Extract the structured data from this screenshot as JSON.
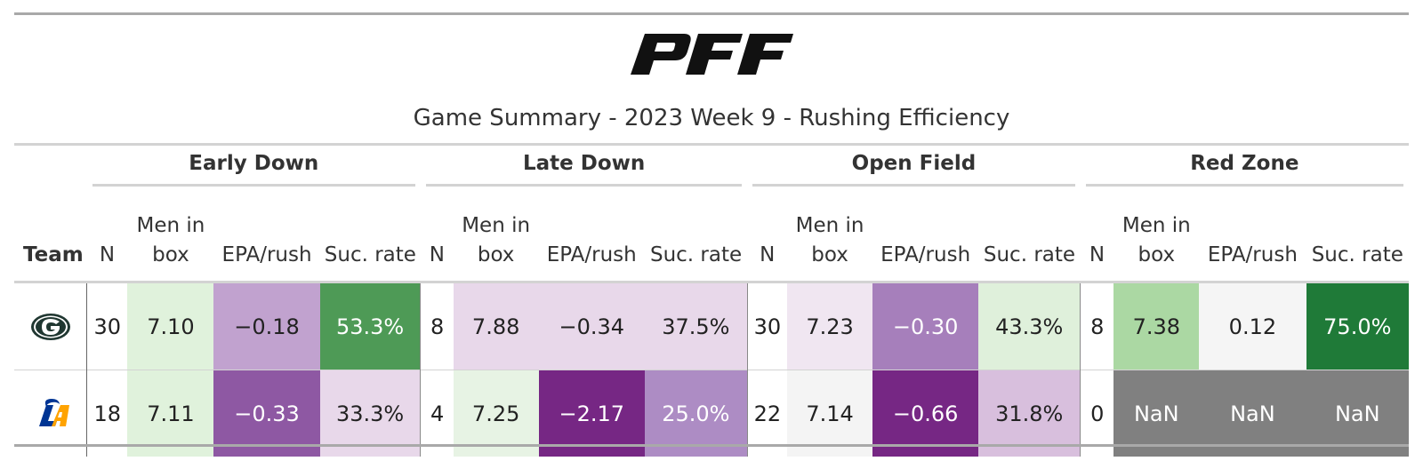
{
  "header": {
    "logo_text": "PFF",
    "title": "Game Summary - 2023 Week 9 - Rushing Efficiency"
  },
  "groups": [
    "Early Down",
    "Late Down",
    "Open Field",
    "Red Zone"
  ],
  "columns": {
    "team": "Team",
    "n": "N",
    "men_in_box_line1": "Men in",
    "men_in_box_line2": "box",
    "epa_rush": "EPA/rush",
    "suc_rate": "Suc. rate"
  },
  "rows": [
    {
      "team_icon": "packers-logo-icon",
      "cells": [
        {
          "text": "30",
          "bg": "#ffffff",
          "fg": "#222222"
        },
        {
          "text": "7.10",
          "bg": "#e0f2dc",
          "fg": "#222222"
        },
        {
          "text": "−0.18",
          "bg": "#c1a2cf",
          "fg": "#222222"
        },
        {
          "text": "53.3%",
          "bg": "#4e9a56",
          "fg": "#ffffff"
        },
        {
          "text": "8",
          "bg": "#ffffff",
          "fg": "#222222"
        },
        {
          "text": "7.88",
          "bg": "#e8d8ea",
          "fg": "#222222"
        },
        {
          "text": "−0.34",
          "bg": "#e8d8ea",
          "fg": "#222222"
        },
        {
          "text": "37.5%",
          "bg": "#e8d8ea",
          "fg": "#222222"
        },
        {
          "text": "30",
          "bg": "#ffffff",
          "fg": "#222222"
        },
        {
          "text": "7.23",
          "bg": "#f0e6f1",
          "fg": "#222222"
        },
        {
          "text": "−0.30",
          "bg": "#a67fbb",
          "fg": "#ffffff"
        },
        {
          "text": "43.3%",
          "bg": "#dff0db",
          "fg": "#222222"
        },
        {
          "text": "8",
          "bg": "#ffffff",
          "fg": "#222222"
        },
        {
          "text": "7.38",
          "bg": "#abd8a3",
          "fg": "#222222"
        },
        {
          "text": "0.12",
          "bg": "#f5f5f5",
          "fg": "#222222"
        },
        {
          "text": "75.0%",
          "bg": "#1f7a38",
          "fg": "#ffffff"
        }
      ]
    },
    {
      "team_icon": "rams-logo-icon",
      "cells": [
        {
          "text": "18",
          "bg": "#ffffff",
          "fg": "#222222"
        },
        {
          "text": "7.11",
          "bg": "#e0f2dc",
          "fg": "#222222"
        },
        {
          "text": "−0.33",
          "bg": "#8e58a3",
          "fg": "#ffffff"
        },
        {
          "text": "33.3%",
          "bg": "#e8d8ea",
          "fg": "#222222"
        },
        {
          "text": "4",
          "bg": "#ffffff",
          "fg": "#222222"
        },
        {
          "text": "7.25",
          "bg": "#e7f3e4",
          "fg": "#222222"
        },
        {
          "text": "−2.17",
          "bg": "#762784",
          "fg": "#ffffff"
        },
        {
          "text": "25.0%",
          "bg": "#ad8cc4",
          "fg": "#ffffff"
        },
        {
          "text": "22",
          "bg": "#ffffff",
          "fg": "#222222"
        },
        {
          "text": "7.14",
          "bg": "#f4f4f4",
          "fg": "#222222"
        },
        {
          "text": "−0.66",
          "bg": "#762784",
          "fg": "#ffffff"
        },
        {
          "text": "31.8%",
          "bg": "#d8bfdd",
          "fg": "#222222"
        },
        {
          "text": "0",
          "bg": "#ffffff",
          "fg": "#222222"
        },
        {
          "text": "NaN",
          "bg": "#808080",
          "fg": "#ffffff"
        },
        {
          "text": "NaN",
          "bg": "#808080",
          "fg": "#ffffff"
        },
        {
          "text": "NaN",
          "bg": "#808080",
          "fg": "#ffffff"
        }
      ]
    }
  ]
}
